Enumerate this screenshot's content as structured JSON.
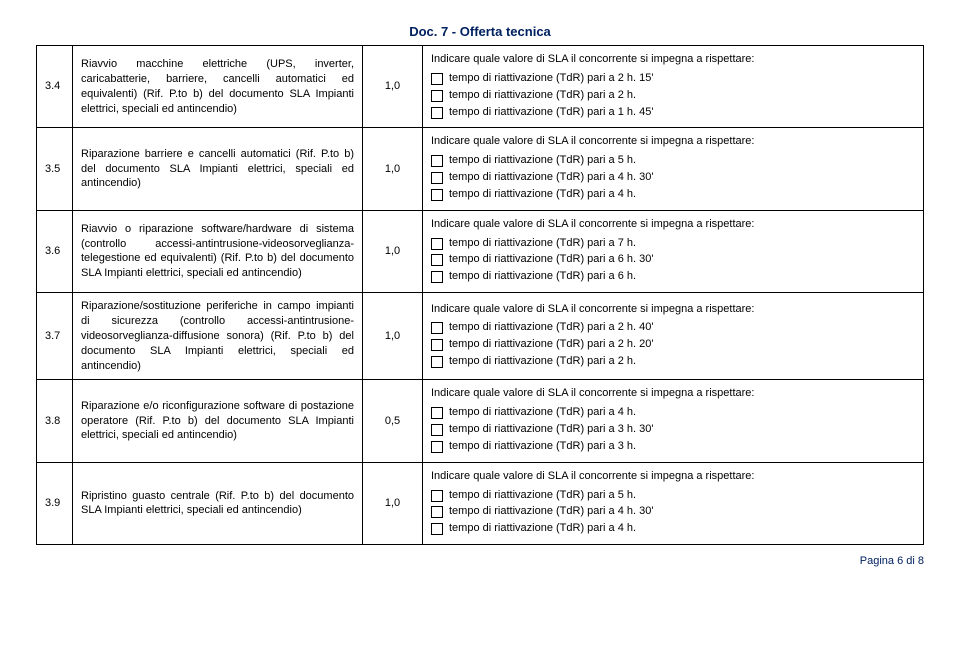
{
  "header": "Doc. 7 - Offerta tecnica",
  "sla_heading": "Indicare quale valore di SLA il concorrente si impegna a rispettare:",
  "rows": [
    {
      "id": "3.4",
      "desc": "Riavvio macchine elettriche (UPS, inverter, caricabatterie, barriere, cancelli automatici ed equivalenti) (Rif. P.to b) del documento SLA Impianti elettrici, speciali ed antincendio)",
      "points": "1,0",
      "options": [
        "tempo di riattivazione (TdR) pari a 2 h. 15'",
        "tempo di riattivazione (TdR) pari a 2 h.",
        "tempo di riattivazione (TdR) pari a 1 h. 45'"
      ]
    },
    {
      "id": "3.5",
      "desc": "Riparazione barriere e cancelli automatici (Rif. P.to b) del documento SLA Impianti elettrici, speciali ed antincendio)",
      "points": "1,0",
      "options": [
        "tempo di riattivazione (TdR) pari a 5 h.",
        "tempo di riattivazione (TdR) pari a 4 h. 30'",
        "tempo di riattivazione (TdR) pari a 4 h."
      ]
    },
    {
      "id": "3.6",
      "desc": "Riavvio o riparazione software/hardware di sistema (controllo accessi-antintrusione-videosorveglianza-telegestione ed equivalenti) (Rif. P.to b) del documento SLA Impianti elettrici, speciali ed antincendio)",
      "points": "1,0",
      "options": [
        "tempo di riattivazione (TdR) pari a 7 h.",
        "tempo di riattivazione (TdR) pari a 6 h. 30'",
        "tempo di riattivazione (TdR) pari a 6 h."
      ]
    },
    {
      "id": "3.7",
      "desc": "Riparazione/sostituzione periferiche in campo impianti di sicurezza (controllo accessi-antintrusione-videosorveglianza-diffusione sonora) (Rif. P.to b) del documento SLA Impianti elettrici, speciali ed antincendio)",
      "points": "1,0",
      "options": [
        "tempo di riattivazione (TdR) pari a 2 h. 40'",
        "tempo di riattivazione (TdR) pari a 2 h. 20'",
        "tempo di riattivazione (TdR) pari a 2 h."
      ]
    },
    {
      "id": "3.8",
      "desc": "Riparazione e/o riconfigurazione software di postazione operatore (Rif. P.to b) del documento SLA Impianti elettrici, speciali ed antincendio)",
      "points": "0,5",
      "options": [
        "tempo di riattivazione (TdR) pari a 4 h.",
        "tempo di riattivazione (TdR) pari a 3 h. 30'",
        "tempo di riattivazione (TdR) pari a 3 h."
      ]
    },
    {
      "id": "3.9",
      "desc": "Ripristino guasto centrale (Rif. P.to b) del documento SLA Impianti elettrici, speciali ed antincendio)",
      "points": "1,0",
      "options": [
        "tempo di riattivazione (TdR) pari a 5 h.",
        "tempo di riattivazione (TdR) pari a 4 h. 30'",
        "tempo di riattivazione (TdR) pari a 4 h."
      ]
    }
  ],
  "footer": "Pagina 6 di 8"
}
